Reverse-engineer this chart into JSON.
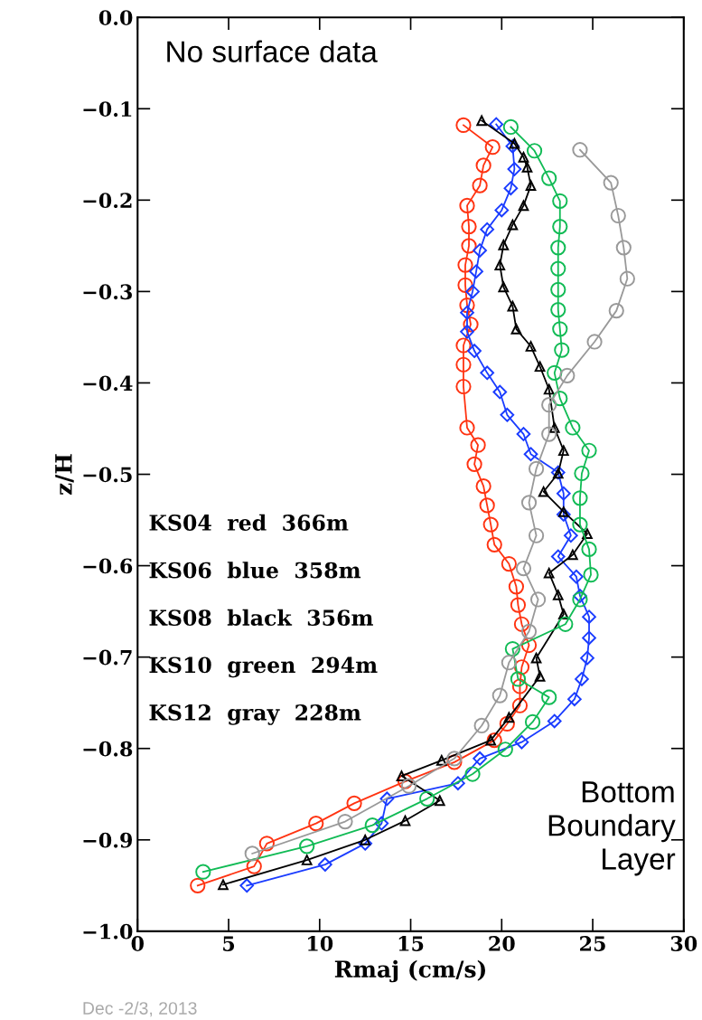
{
  "chart_data": {
    "type": "line",
    "xlabel": "Rmaj (cm/s)",
    "ylabel": "z/H",
    "xlim": [
      0,
      30
    ],
    "xticks": [
      0,
      5,
      10,
      15,
      20,
      25,
      30
    ],
    "ylim": [
      -1.0,
      0.0
    ],
    "yticks": [
      {
        "value": 0.0,
        "label": "0.0"
      },
      {
        "value": -0.1,
        "label": "−0.1"
      },
      {
        "value": -0.2,
        "label": "−0.2"
      },
      {
        "value": -0.3,
        "label": "−0.3"
      },
      {
        "value": -0.4,
        "label": "−0.4"
      },
      {
        "value": -0.5,
        "label": "−0.5"
      },
      {
        "value": -0.6,
        "label": "−0.6"
      },
      {
        "value": -0.7,
        "label": "−0.7"
      },
      {
        "value": -0.8,
        "label": "−0.8"
      },
      {
        "value": -0.9,
        "label": "−0.9"
      },
      {
        "value": -1.0,
        "label": "−1.0"
      }
    ],
    "grid": false,
    "legend": false,
    "annotations": [
      "No surface data",
      "Bottom\nBoundary\nLayer",
      "KS04  red  366m",
      "KS06  blue  358m",
      "KS08  black  356m",
      "KS10  green  294m",
      "KS12  gray  228m",
      "Dec -2/3, 2013"
    ],
    "series": [
      {
        "color": "#ff3311",
        "marker": "circle",
        "x": [
          17.9,
          19.5,
          19.0,
          18.8,
          18.1,
          18.2,
          18.2,
          18.0,
          18.0,
          18.1,
          18.3,
          17.9,
          17.9,
          17.9,
          18.1,
          18.7,
          18.5,
          19.0,
          19.2,
          19.4,
          19.6,
          20.4,
          20.8,
          20.9,
          21.1,
          21.5,
          21.1,
          21.0,
          21.0,
          20.3,
          19.6,
          17.4,
          14.7,
          11.9,
          9.8,
          7.1,
          6.4,
          3.3
        ],
        "values": [
          -0.118,
          -0.142,
          -0.162,
          -0.184,
          -0.206,
          -0.229,
          -0.25,
          -0.271,
          -0.293,
          -0.315,
          -0.336,
          -0.359,
          -0.38,
          -0.404,
          -0.449,
          -0.468,
          -0.489,
          -0.513,
          -0.534,
          -0.555,
          -0.577,
          -0.598,
          -0.623,
          -0.643,
          -0.664,
          -0.687,
          -0.711,
          -0.732,
          -0.753,
          -0.773,
          -0.791,
          -0.815,
          -0.836,
          -0.86,
          -0.882,
          -0.904,
          -0.929,
          -0.95
        ]
      },
      {
        "color": "#1a3cff",
        "marker": "diamond",
        "x": [
          19.7,
          20.6,
          20.7,
          20.5,
          20.0,
          19.2,
          18.8,
          18.6,
          18.4,
          18.1,
          18.1,
          18.5,
          19.2,
          19.9,
          20.3,
          21.2,
          21.6,
          23.1,
          23.4,
          23.4,
          23.8,
          23.1,
          24.1,
          24.3,
          24.8,
          24.8,
          24.7,
          24.4,
          24.0,
          22.9,
          21.1,
          18.8,
          17.6,
          13.7,
          13.4,
          12.5,
          10.3,
          6.0
        ],
        "values": [
          -0.117,
          -0.141,
          -0.166,
          -0.187,
          -0.211,
          -0.232,
          -0.255,
          -0.278,
          -0.3,
          -0.323,
          -0.344,
          -0.365,
          -0.389,
          -0.41,
          -0.435,
          -0.456,
          -0.478,
          -0.498,
          -0.521,
          -0.544,
          -0.567,
          -0.59,
          -0.612,
          -0.633,
          -0.656,
          -0.679,
          -0.701,
          -0.724,
          -0.746,
          -0.77,
          -0.793,
          -0.811,
          -0.838,
          -0.855,
          -0.882,
          -0.904,
          -0.927,
          -0.95
        ]
      },
      {
        "color": "#000000",
        "marker": "triangle",
        "x": [
          18.9,
          20.7,
          21.2,
          21.4,
          21.6,
          21.2,
          20.6,
          20.1,
          19.9,
          20.1,
          20.6,
          20.8,
          21.6,
          22.1,
          22.6,
          22.9,
          23.4,
          23.1,
          22.3,
          23.4,
          24.7,
          23.9,
          22.6,
          23.1,
          23.4,
          21.9,
          22.1,
          20.4,
          19.4,
          16.7,
          14.5,
          16.6,
          14.7,
          12.5,
          9.3,
          4.7
        ],
        "values": [
          -0.113,
          -0.138,
          -0.153,
          -0.164,
          -0.184,
          -0.206,
          -0.227,
          -0.249,
          -0.271,
          -0.295,
          -0.316,
          -0.341,
          -0.36,
          -0.382,
          -0.407,
          -0.449,
          -0.474,
          -0.499,
          -0.519,
          -0.541,
          -0.565,
          -0.588,
          -0.608,
          -0.632,
          -0.653,
          -0.701,
          -0.721,
          -0.766,
          -0.791,
          -0.813,
          -0.83,
          -0.857,
          -0.879,
          -0.9,
          -0.922,
          -0.949
        ]
      },
      {
        "color": "#11bb55",
        "marker": "circle",
        "x": [
          20.5,
          21.8,
          22.6,
          23.2,
          23.2,
          23.1,
          23.1,
          23.1,
          23.1,
          23.2,
          23.3,
          22.9,
          23.2,
          23.9,
          24.8,
          24.4,
          24.3,
          24.3,
          24.8,
          24.9,
          24.3,
          23.5,
          20.6,
          20.9,
          22.6,
          21.7,
          20.2,
          18.4,
          15.9,
          12.9,
          9.3,
          3.6
        ],
        "values": [
          -0.12,
          -0.146,
          -0.176,
          -0.201,
          -0.229,
          -0.252,
          -0.275,
          -0.298,
          -0.32,
          -0.341,
          -0.364,
          -0.389,
          -0.417,
          -0.449,
          -0.474,
          -0.499,
          -0.526,
          -0.555,
          -0.582,
          -0.61,
          -0.637,
          -0.664,
          -0.691,
          -0.724,
          -0.744,
          -0.771,
          -0.801,
          -0.828,
          -0.855,
          -0.884,
          -0.907,
          -0.935
        ]
      },
      {
        "color": "#999999",
        "marker": "circle",
        "x": [
          24.3,
          26.0,
          26.4,
          26.7,
          26.9,
          26.3,
          25.1,
          23.6,
          22.6,
          22.6,
          21.9,
          21.5,
          21.9,
          21.2,
          22.0,
          21.5,
          20.4,
          19.9,
          18.9,
          17.4,
          14.9,
          11.4,
          6.3
        ],
        "values": [
          -0.145,
          -0.181,
          -0.217,
          -0.252,
          -0.286,
          -0.321,
          -0.355,
          -0.392,
          -0.424,
          -0.456,
          -0.494,
          -0.531,
          -0.567,
          -0.603,
          -0.637,
          -0.672,
          -0.706,
          -0.742,
          -0.775,
          -0.811,
          -0.841,
          -0.88,
          -0.915
        ]
      }
    ]
  }
}
